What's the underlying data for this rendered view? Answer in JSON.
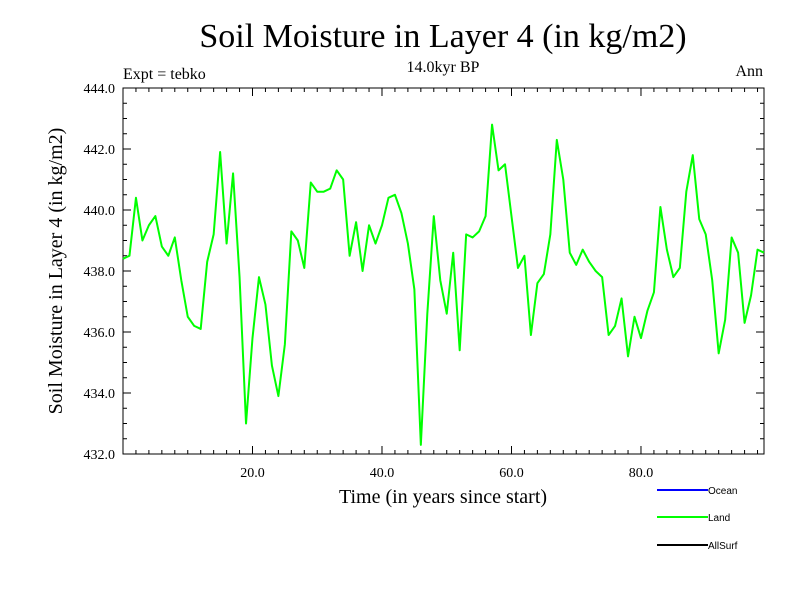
{
  "chart_data": {
    "type": "line",
    "title": "Soil Moisture in Layer 4 (in kg/m2)",
    "subtitle": "14.0kyr BP",
    "left_note": "Expt = tebko",
    "right_note": "Ann",
    "xlabel": "Time (in years since start)",
    "ylabel": "Soil Moisture in Layer 4 (in kg/m2)",
    "xlim": [
      0,
      99
    ],
    "ylim": [
      432.0,
      444.0
    ],
    "x_ticks": [
      20,
      40,
      60,
      80
    ],
    "x_tick_labels": [
      "20.0",
      "40.0",
      "60.0",
      "80.0"
    ],
    "y_ticks": [
      432,
      434,
      436,
      438,
      440,
      442,
      444
    ],
    "y_tick_labels": [
      "432.0",
      "434.0",
      "436.0",
      "438.0",
      "440.0",
      "442.0",
      "444.0"
    ],
    "legend": [
      {
        "name": "Ocean",
        "color": "#0000ff"
      },
      {
        "name": "Land",
        "color": "#00ff00"
      },
      {
        "name": "AllSurf",
        "color": "#000000"
      }
    ],
    "series": [
      {
        "name": "Land",
        "color": "#00ff00",
        "x": [
          0,
          1,
          2,
          3,
          4,
          5,
          6,
          7,
          8,
          9,
          10,
          11,
          12,
          13,
          14,
          15,
          16,
          17,
          18,
          19,
          20,
          21,
          22,
          23,
          24,
          25,
          26,
          27,
          28,
          29,
          30,
          31,
          32,
          33,
          34,
          35,
          36,
          37,
          38,
          39,
          40,
          41,
          42,
          43,
          44,
          45,
          46,
          47,
          48,
          49,
          50,
          51,
          52,
          53,
          54,
          55,
          56,
          57,
          58,
          59,
          60,
          61,
          62,
          63,
          64,
          65,
          66,
          67,
          68,
          69,
          70,
          71,
          72,
          73,
          74,
          75,
          76,
          77,
          78,
          79,
          80,
          81,
          82,
          83,
          84,
          85,
          86,
          87,
          88,
          89,
          90,
          91,
          92,
          93,
          94,
          95,
          96,
          97,
          98,
          99
        ],
        "values": [
          438.4,
          438.5,
          440.4,
          439.0,
          439.5,
          439.8,
          438.8,
          438.5,
          439.1,
          437.7,
          436.5,
          436.2,
          436.1,
          438.3,
          439.2,
          441.9,
          438.9,
          441.2,
          437.8,
          433.0,
          435.8,
          437.8,
          436.9,
          434.9,
          433.9,
          435.6,
          439.3,
          439.0,
          438.1,
          440.9,
          440.6,
          440.6,
          440.7,
          441.3,
          441.0,
          438.5,
          439.6,
          438.0,
          439.5,
          438.9,
          439.5,
          440.4,
          440.5,
          439.9,
          438.9,
          437.4,
          432.3,
          436.6,
          439.8,
          437.7,
          436.6,
          438.6,
          435.4,
          439.2,
          439.1,
          439.3,
          439.8,
          442.8,
          441.3,
          441.5,
          439.8,
          438.1,
          438.5,
          435.9,
          437.6,
          437.9,
          439.2,
          442.3,
          441.0,
          438.6,
          438.2,
          438.7,
          438.3,
          438.0,
          437.8,
          435.9,
          436.2,
          437.1,
          435.2,
          436.5,
          435.8,
          436.7,
          437.3,
          440.1,
          438.7,
          437.8,
          438.1,
          440.6,
          441.8,
          439.7,
          439.2,
          437.7,
          435.3,
          436.4,
          439.1,
          438.6,
          436.3,
          437.2,
          438.7,
          438.6
        ]
      }
    ]
  }
}
